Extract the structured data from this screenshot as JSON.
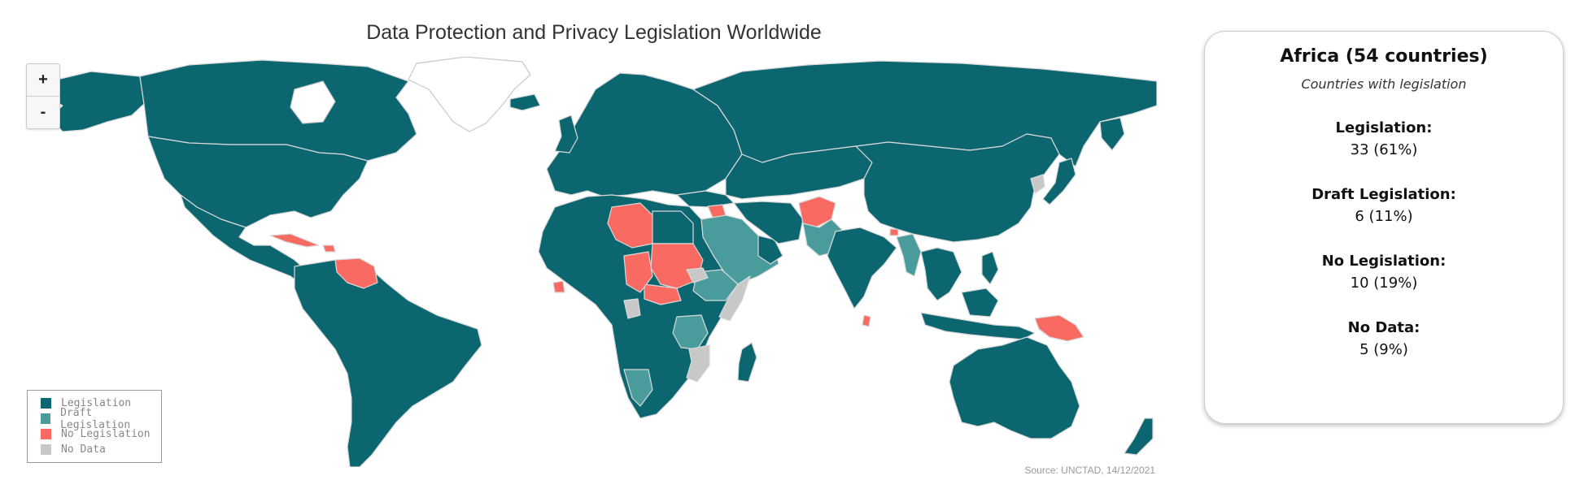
{
  "title": "Data Protection and Privacy Legislation Worldwide",
  "zoom": {
    "in_label": "+",
    "out_label": "-"
  },
  "legend": [
    {
      "label": "Legislation",
      "color": "#0c6670"
    },
    {
      "label": "Draft Legislation",
      "color": "#4a9c9c"
    },
    {
      "label": "No Legislation",
      "color": "#f86a62"
    },
    {
      "label": "No Data",
      "color": "#c8c8c8"
    }
  ],
  "source": "Source: UNCTAD, 14/12/2021",
  "info": {
    "title": "Africa (54 countries)",
    "subtitle": "Countries with legislation",
    "stats": [
      {
        "label": "Legislation:",
        "value": "33 (61%)"
      },
      {
        "label": "Draft Legislation:",
        "value": "6 (11%)"
      },
      {
        "label": "No Legislation:",
        "value": "10 (19%)"
      },
      {
        "label": "No Data:",
        "value": "5 (9%)"
      }
    ]
  },
  "colors": {
    "legislation": "#0c6670",
    "draft": "#4a9c9c",
    "none": "#f86a62",
    "nodata": "#c8c8c8",
    "border": "#d9d9d9"
  }
}
